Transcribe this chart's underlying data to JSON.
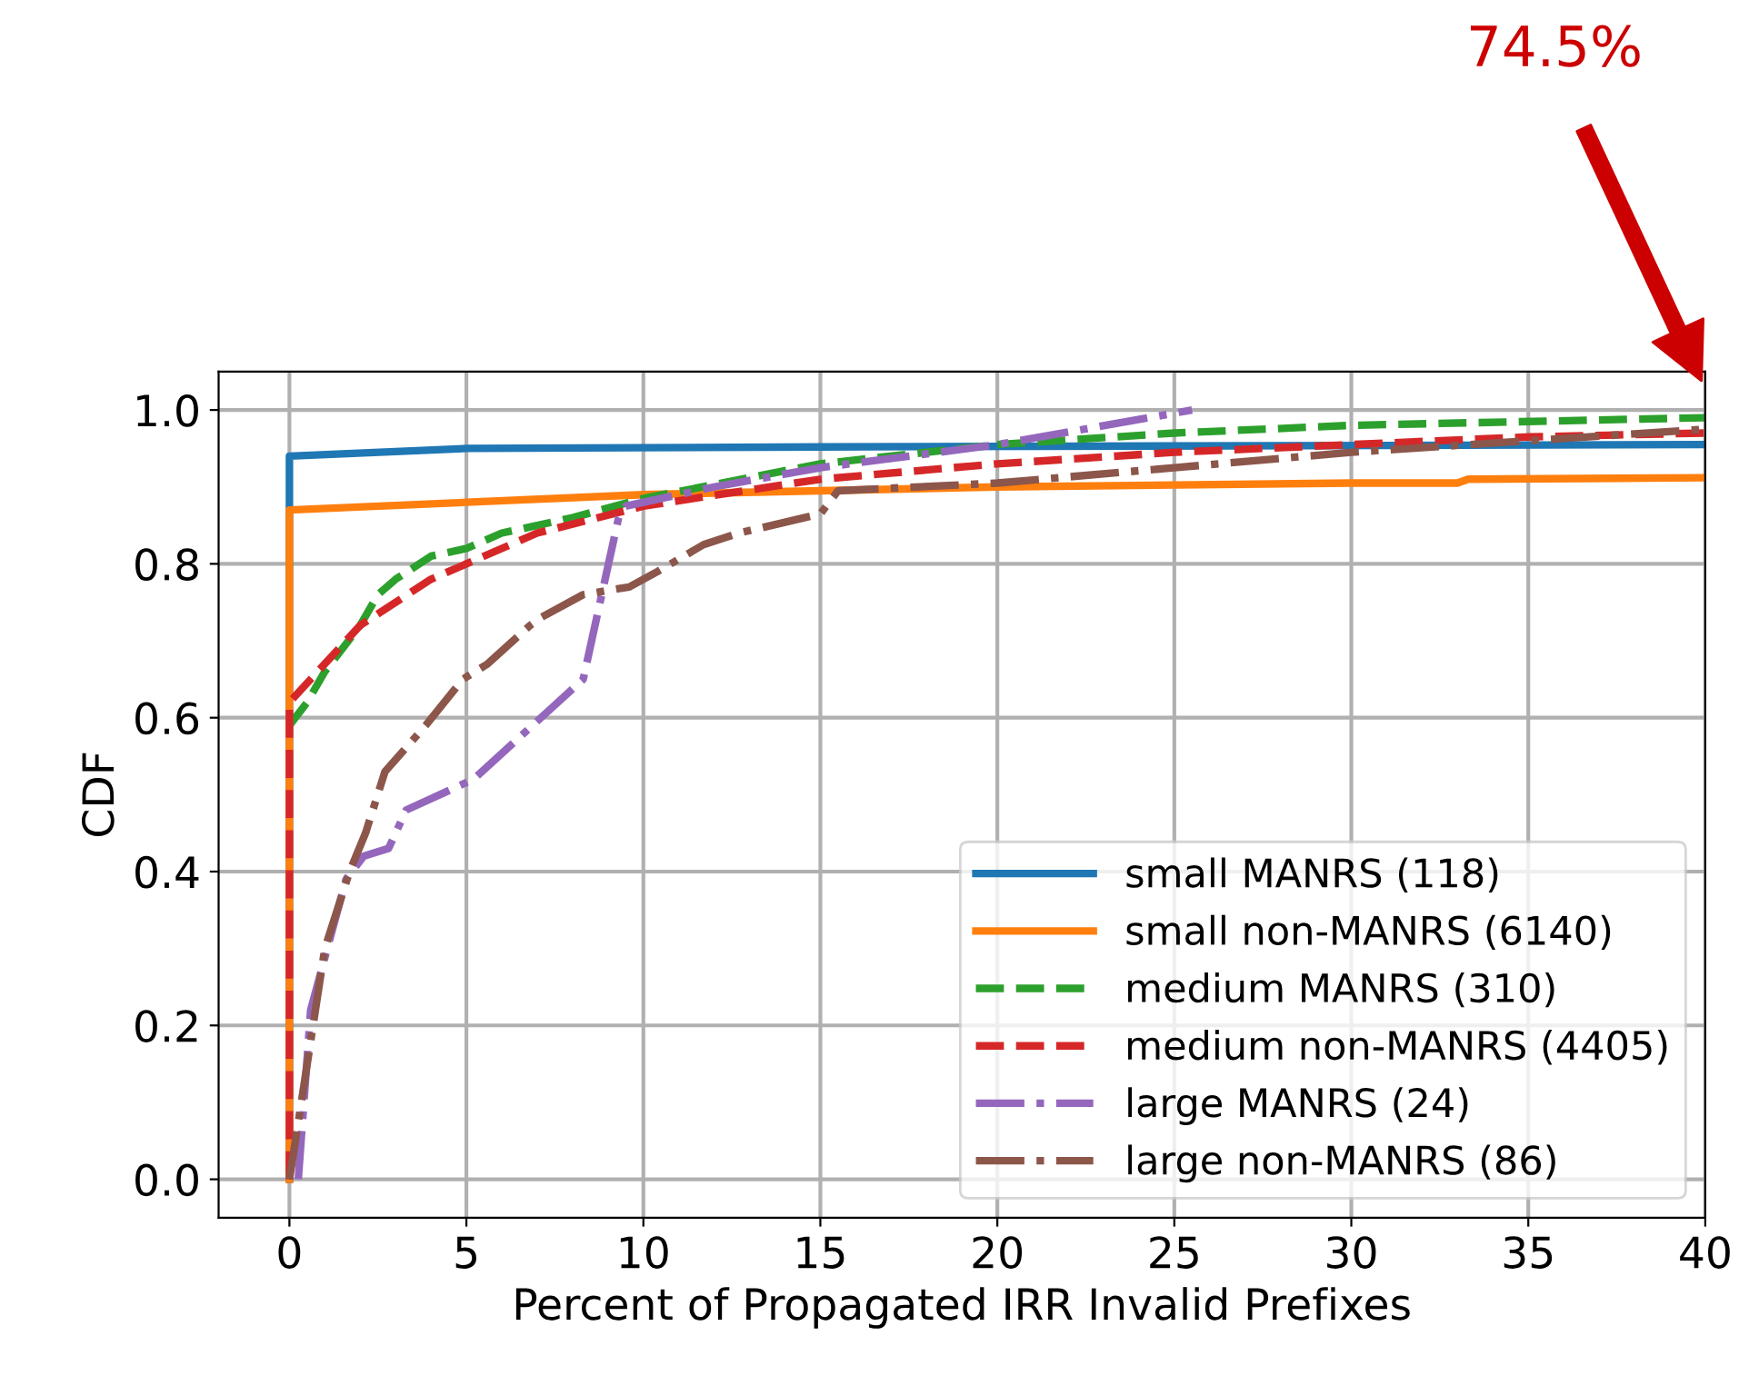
{
  "chart_data": {
    "type": "line",
    "xlabel": "Percent of Propagated IRR Invalid Prefixes",
    "ylabel": "CDF",
    "xlim": [
      -2,
      40
    ],
    "ylim": [
      -0.05,
      1.05
    ],
    "xticks": [
      0,
      5,
      10,
      15,
      20,
      25,
      30,
      35,
      40
    ],
    "yticks": [
      {
        "value": 0,
        "label": "0.0"
      },
      {
        "value": 0.2,
        "label": "0.2"
      },
      {
        "value": 0.4,
        "label": "0.4"
      },
      {
        "value": 0.6,
        "label": "0.6"
      },
      {
        "value": 0.8,
        "label": "0.8"
      },
      {
        "value": 1,
        "label": "1.0"
      }
    ],
    "grid": true,
    "legend": "bottom right",
    "annotations": [
      "74.5%"
    ],
    "series": [
      {
        "name": "small MANRS (118)",
        "color": "#1f77b4",
        "line_style": "solid",
        "x": [
          0,
          0,
          5,
          15,
          40
        ],
        "values": [
          0,
          0.94,
          0.95,
          0.952,
          0.955
        ]
      },
      {
        "name": "small non-MANRS (6140)",
        "color": "#ff7f0e",
        "line_style": "solid",
        "x": [
          0,
          0,
          5,
          10,
          20,
          30,
          33,
          33.3,
          40
        ],
        "values": [
          0,
          0.87,
          0.88,
          0.89,
          0.9,
          0.905,
          0.905,
          0.91,
          0.912
        ]
      },
      {
        "name": "medium MANRS (310)",
        "color": "#2ca02c",
        "line_style": "dashed",
        "x": [
          0,
          0.5,
          1,
          2,
          2.5,
          3,
          4,
          5,
          6,
          8,
          10,
          15,
          20,
          25,
          30,
          40
        ],
        "values": [
          0.59,
          0.62,
          0.66,
          0.72,
          0.76,
          0.78,
          0.81,
          0.82,
          0.84,
          0.86,
          0.885,
          0.93,
          0.955,
          0.97,
          0.98,
          0.99
        ]
      },
      {
        "name": "medium non-MANRS (4405)",
        "color": "#d62728",
        "line_style": "dashed",
        "x": [
          0,
          0,
          1,
          2,
          3,
          4,
          5,
          7,
          10,
          15,
          20,
          25,
          30,
          35,
          40
        ],
        "values": [
          0,
          0.62,
          0.67,
          0.72,
          0.75,
          0.78,
          0.8,
          0.84,
          0.875,
          0.91,
          0.93,
          0.945,
          0.955,
          0.965,
          0.97
        ]
      },
      {
        "name": "large MANRS (24)",
        "color": "#9467bd",
        "line_style": "dashdot",
        "x": [
          0.25,
          0.6,
          1.6,
          2.1,
          2.8,
          3.3,
          5.2,
          8.3,
          9.3,
          9.5,
          12,
          15,
          20,
          25.5
        ],
        "values": [
          0,
          0.22,
          0.39,
          0.42,
          0.43,
          0.48,
          0.52,
          0.65,
          0.86,
          0.875,
          0.9,
          0.925,
          0.955,
          1.0
        ]
      },
      {
        "name": "large non-MANRS (86)",
        "color": "#8c564b",
        "line_style": "dashdot",
        "x": [
          0,
          0.27,
          1,
          1.7,
          2.15,
          2.7,
          3.85,
          4.9,
          5.6,
          6.8,
          7.1,
          8.3,
          9.6,
          10.4,
          11.7,
          12.7,
          15,
          15.5,
          20,
          25,
          30,
          35,
          40
        ],
        "values": [
          0,
          0.08,
          0.3,
          0.4,
          0.45,
          0.53,
          0.59,
          0.65,
          0.67,
          0.72,
          0.73,
          0.76,
          0.77,
          0.79,
          0.825,
          0.84,
          0.865,
          0.895,
          0.905,
          0.925,
          0.945,
          0.96,
          0.975
        ]
      }
    ]
  }
}
